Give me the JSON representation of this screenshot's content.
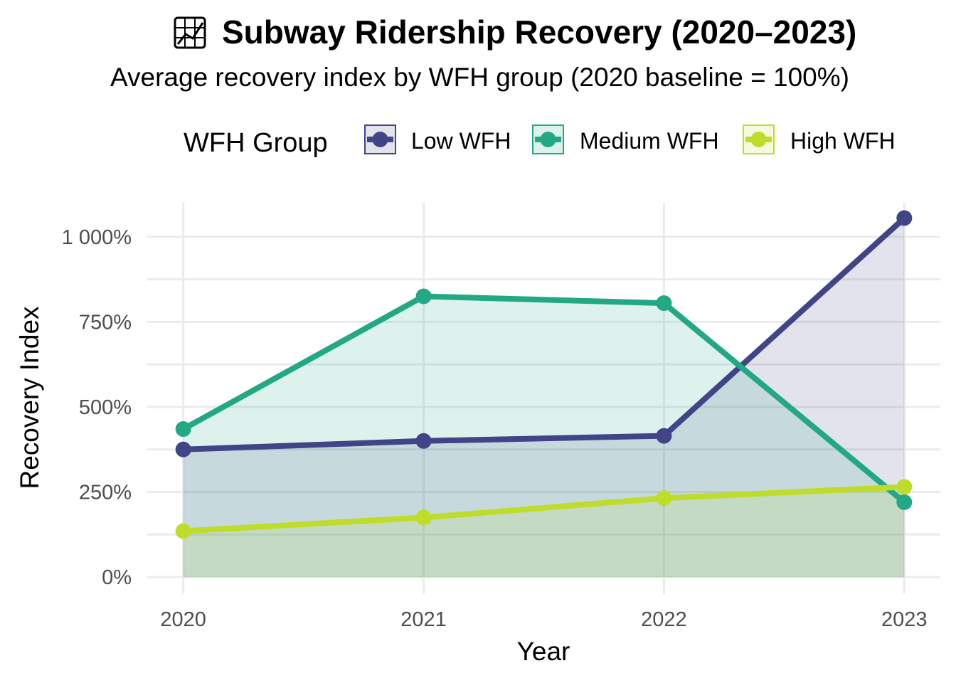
{
  "chart_data": {
    "type": "area",
    "title": "Subway Ridership Recovery (2020–2023)",
    "title_icon": "chart-increasing-icon",
    "subtitle": "Average recovery index by WFH group (2020 baseline = 100%)",
    "xlabel": "Year",
    "ylabel": "Recovery Index",
    "x": [
      2020,
      2021,
      2022,
      2023
    ],
    "x_tick_labels": [
      "2020",
      "2021",
      "2022",
      "2023"
    ],
    "ylim": [
      -50,
      1100
    ],
    "y_ticks": [
      0,
      250,
      500,
      750,
      1000
    ],
    "y_tick_labels": [
      "0%",
      "250%",
      "500%",
      "750%",
      "1 000%"
    ],
    "grid": true,
    "legend": {
      "title": "WFH Group",
      "position": "top"
    },
    "series": [
      {
        "name": "Low WFH",
        "color": "#414487",
        "values": [
          375,
          400,
          415,
          1055
        ]
      },
      {
        "name": "Medium WFH",
        "color": "#22A884",
        "values": [
          435,
          825,
          805,
          220
        ]
      },
      {
        "name": "High WFH",
        "color": "#BEDC29",
        "values": [
          135,
          175,
          232,
          265
        ]
      }
    ]
  }
}
